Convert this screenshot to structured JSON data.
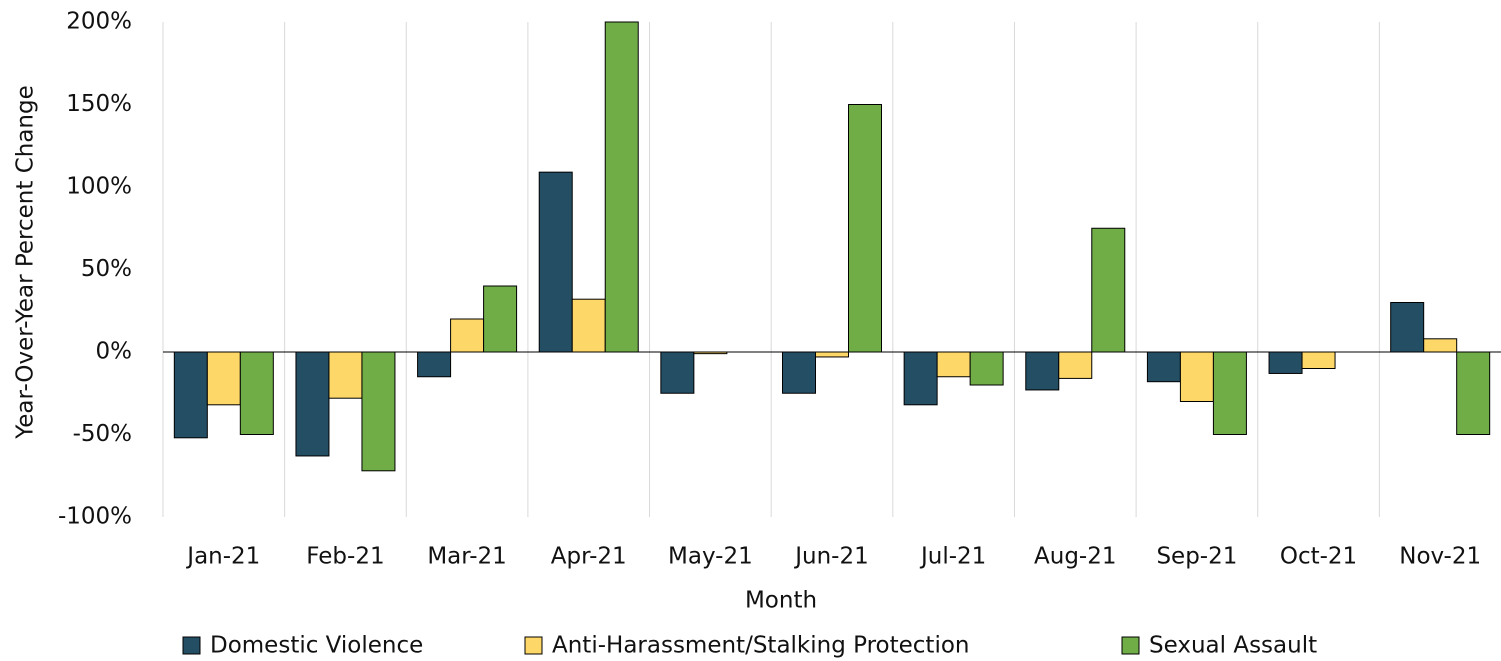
{
  "chart_data": {
    "type": "bar",
    "x_label": "Month",
    "y_label": "Year-Over-Year Percent Change",
    "categories": [
      "Jan-21",
      "Feb-21",
      "Mar-21",
      "Apr-21",
      "May-21",
      "Jun-21",
      "Jul-21",
      "Aug-21",
      "Sep-21",
      "Oct-21",
      "Nov-21"
    ],
    "series": [
      {
        "name": "Domestic Violence",
        "color": "#234e64",
        "values": [
          -52,
          -63,
          -15,
          109,
          -25,
          -25,
          -32,
          -23,
          -18,
          -13,
          30
        ]
      },
      {
        "name": "Anti-Harassment/Stalking Protection",
        "color": "#fdd868",
        "values": [
          -32,
          -28,
          20,
          32,
          -1,
          -3,
          -15,
          -16,
          -30,
          -10,
          8
        ]
      },
      {
        "name": "Sexual Assault",
        "color": "#70ad47",
        "values": [
          -50,
          -72,
          40,
          200,
          0,
          150,
          -20,
          75,
          -50,
          0,
          -50
        ]
      }
    ],
    "ylim": [
      -100,
      200
    ],
    "yticks": [
      {
        "value": -100,
        "label": "-100%"
      },
      {
        "value": -50,
        "label": "-50%"
      },
      {
        "value": 0,
        "label": "0%"
      },
      {
        "value": 50,
        "label": "50%"
      },
      {
        "value": 100,
        "label": "100%"
      },
      {
        "value": 150,
        "label": "150%"
      },
      {
        "value": 200,
        "label": "200%"
      }
    ],
    "grid": true,
    "legend": "bottom"
  }
}
